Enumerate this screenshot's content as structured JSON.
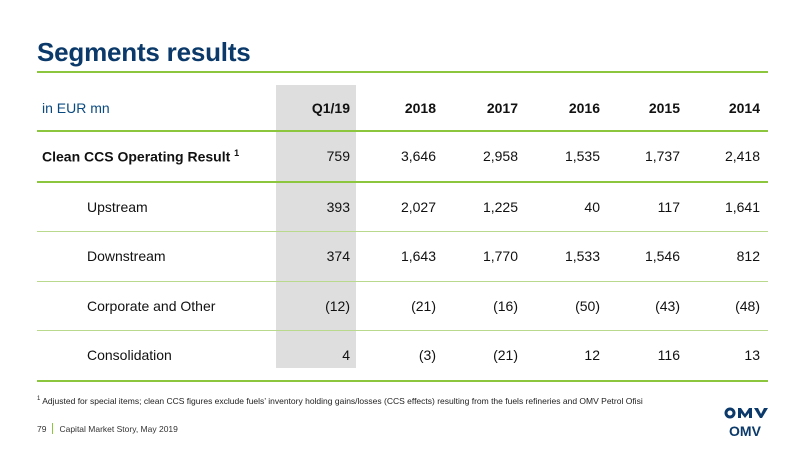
{
  "title": "Segments results",
  "table": {
    "unit_label": "in EUR mn",
    "columns": [
      "Q1/19",
      "2018",
      "2017",
      "2016",
      "2015",
      "2014"
    ],
    "rows": [
      {
        "label": "Clean CCS Operating Result",
        "note": "1",
        "values": [
          "759",
          "3,646",
          "2,958",
          "1,535",
          "1,737",
          "2,418"
        ]
      },
      {
        "label": "Upstream",
        "values": [
          "393",
          "2,027",
          "1,225",
          "40",
          "117",
          "1,641"
        ]
      },
      {
        "label": "Downstream",
        "values": [
          "374",
          "1,643",
          "1,770",
          "1,533",
          "1,546",
          "812"
        ]
      },
      {
        "label": "Corporate and Other",
        "values": [
          "(12)",
          "(21)",
          "(16)",
          "(50)",
          "(43)",
          "(48)"
        ]
      },
      {
        "label": "Consolidation",
        "values": [
          "4",
          "(3)",
          "(21)",
          "12",
          "116",
          "13"
        ]
      }
    ]
  },
  "footnote": {
    "marker": "1",
    "text": "Adjusted for special items; clean CCS figures exclude fuels’ inventory holding gains/losses (CCS effects) resulting from the fuels refineries and OMV Petrol Ofisi"
  },
  "footer": {
    "page_number": "79",
    "text": "Capital Market Story, May 2019"
  },
  "logo": {
    "text": "OMV",
    "icon": "omv-logo-icon"
  },
  "colors": {
    "title": "#0b3a6a",
    "accent_green": "#8cc63f",
    "highlight_column": "#dedede",
    "logo_blue": "#0b3a6a"
  }
}
